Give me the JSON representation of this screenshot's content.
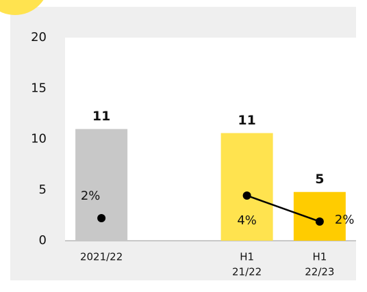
{
  "chart_data": {
    "type": "bar",
    "categories": [
      "2021/22",
      null,
      [
        "H1",
        "21/22"
      ],
      [
        "H1",
        "22/23"
      ]
    ],
    "series": [
      {
        "type": "bar",
        "values": [
          11,
          null,
          10.6,
          4.8
        ],
        "value_labels": [
          "11",
          null,
          "11",
          "5"
        ],
        "colors": [
          "#c8c8c8",
          null,
          "#ffe34f",
          "#ffcc00"
        ]
      },
      {
        "type": "line",
        "axis": "y2",
        "color": "#000000",
        "values": [
          2,
          null,
          4,
          1.7
        ],
        "value_labels": [
          "2%",
          null,
          "4%",
          "2%"
        ]
      }
    ],
    "ylim": [
      0,
      20
    ],
    "yticks": [
      0,
      5,
      10,
      15,
      20
    ],
    "y2lim": [
      0,
      18
    ]
  }
}
